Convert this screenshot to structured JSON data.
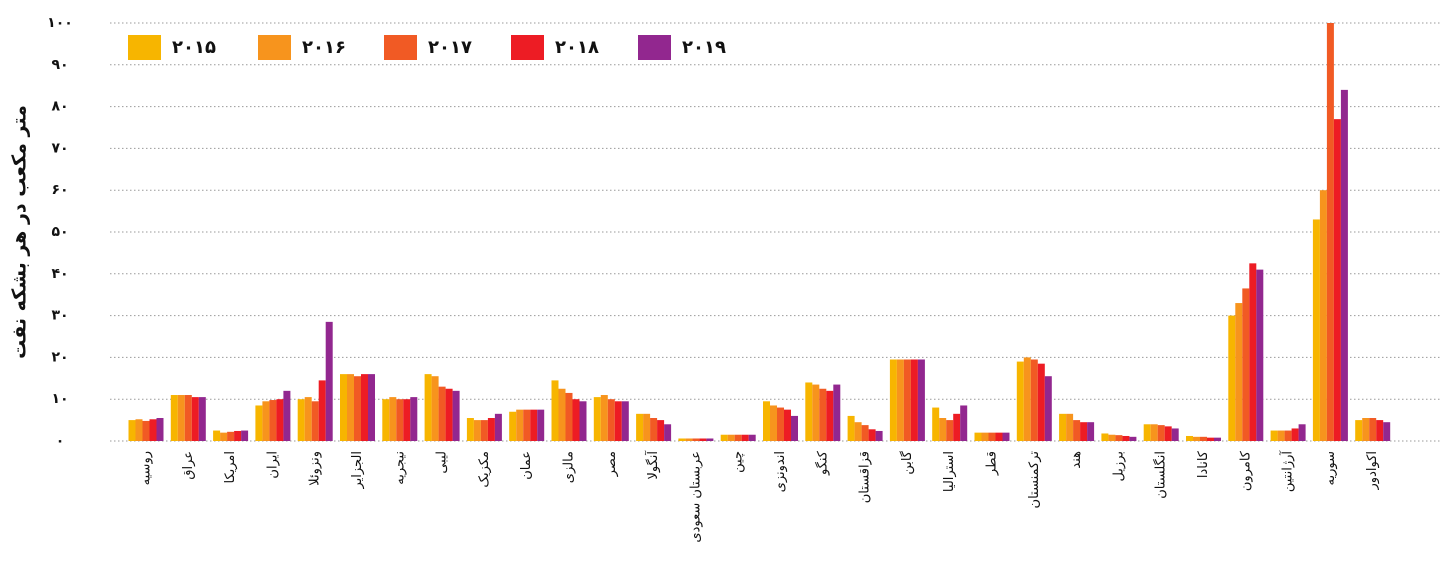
{
  "chart_data": {
    "type": "bar",
    "ylabel": "متر مکعب در هر بشکه نفت",
    "ylim": [
      0,
      100
    ],
    "yticks": [
      0,
      10,
      20,
      30,
      40,
      50,
      60,
      70,
      80,
      90,
      100
    ],
    "ytick_labels": [
      "۰",
      "۱۰",
      "۲۰",
      "۳۰",
      "۴۰",
      "۵۰",
      "۶۰",
      "۷۰",
      "۸۰",
      "۹۰",
      "۱۰۰"
    ],
    "grid": true,
    "legend_position": "top-left",
    "categories": [
      "روسیه",
      "عراق",
      "امریکا",
      "ایران",
      "ونزوئلا",
      "الجزایر",
      "نیجریه",
      "لیبی",
      "مکزیک",
      "عمان",
      "مالزی",
      "مصر",
      "آنگولا",
      "عربستان سعودی",
      "چین",
      "اندونزی",
      "کنگو",
      "قزاقستان",
      "گابن",
      "استرالیا",
      "قطر",
      "ترکمنستان",
      "هند",
      "برزیل",
      "انگلستان",
      "کانادا",
      "کامرون",
      "آرژانتین",
      "سوریه",
      "اکوادور"
    ],
    "series": [
      {
        "name": "۲۰۱۵",
        "color": "#F7B500",
        "values": [
          5,
          11,
          2.5,
          8.5,
          10,
          16,
          10,
          16,
          5.5,
          7,
          14.5,
          10.5,
          6.5,
          0.6,
          1.5,
          9.5,
          14,
          6,
          19.5,
          8,
          2,
          19,
          6.5,
          1.8,
          4,
          1.2,
          30,
          2.5,
          53,
          5
        ]
      },
      {
        "name": "۲۰۱۶",
        "color": "#F7941D",
        "values": [
          5.2,
          11,
          2,
          9.5,
          10.5,
          16,
          10.5,
          15.5,
          5,
          7.5,
          12.5,
          11,
          6.5,
          0.6,
          1.5,
          8.5,
          13.5,
          4.5,
          19.5,
          5.5,
          2,
          20,
          6.5,
          1.5,
          4,
          1,
          33,
          2.5,
          60,
          5.5
        ]
      },
      {
        "name": "۲۰۱۷",
        "color": "#F15A24",
        "values": [
          4.8,
          11,
          2.2,
          9.8,
          9.5,
          15.5,
          10,
          13,
          5,
          7.5,
          11.5,
          10,
          5.5,
          0.6,
          1.5,
          8,
          12.5,
          3.8,
          19.5,
          5,
          2,
          19.5,
          5,
          1.4,
          3.8,
          1,
          36.5,
          2.5,
          100,
          5.5
        ]
      },
      {
        "name": "۲۰۱۸",
        "color": "#ED1C24",
        "values": [
          5.2,
          10.5,
          2.4,
          10,
          14.5,
          16,
          10,
          12.5,
          5.5,
          7.5,
          10,
          9.5,
          5,
          0.6,
          1.5,
          7.5,
          12,
          2.8,
          19.5,
          6.5,
          2,
          18.5,
          4.5,
          1.2,
          3.5,
          0.8,
          42.5,
          3,
          77,
          5
        ]
      },
      {
        "name": "۲۰۱۹",
        "color": "#92278F",
        "values": [
          5.5,
          10.5,
          2.5,
          12,
          28.5,
          16,
          10.5,
          12,
          6.5,
          7.5,
          9.5,
          9.5,
          4,
          0.6,
          1.5,
          6,
          13.5,
          2.4,
          19.5,
          8.5,
          2,
          15.5,
          4.5,
          1,
          3,
          0.8,
          41,
          4,
          84,
          4.5
        ]
      }
    ]
  }
}
